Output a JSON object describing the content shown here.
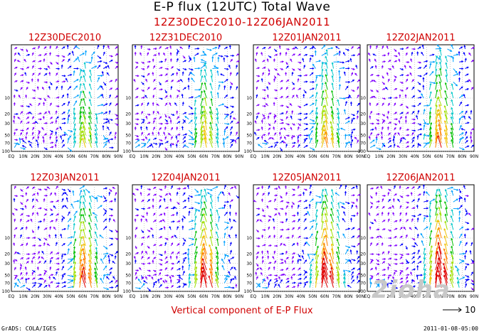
{
  "title": "E-P flux (12UTC) Total Wave",
  "subtitle": "12Z30DEC2010-12Z06JAN2011",
  "footer_label": "Vertical component of E-P Flux",
  "credit": "GrADS: COLA/IGES",
  "timestamp": "2011-01-08-05:00",
  "reference_vector_label": "10",
  "watermark": "2ioha",
  "chart_data": {
    "type": "quiver",
    "panels": [
      {
        "title": "12Z30DEC2010"
      },
      {
        "title": "12Z31DEC2010"
      },
      {
        "title": "12Z01JAN2011"
      },
      {
        "title": "12Z02JAN2011"
      },
      {
        "title": "12Z03JAN2011"
      },
      {
        "title": "12Z04JAN2011"
      },
      {
        "title": "12Z05JAN2011"
      },
      {
        "title": "12Z06JAN2011"
      }
    ],
    "x_ticks": [
      "EQ",
      "10N",
      "20N",
      "30N",
      "40N",
      "50N",
      "60N",
      "70N",
      "80N",
      "90N"
    ],
    "y_ticks": [
      "10",
      "20",
      "30",
      "50",
      "70",
      "100"
    ],
    "ylim": [
      1,
      100
    ],
    "y_scale": "log",
    "colors": [
      "#8000ff",
      "#0000ff",
      "#00a0ff",
      "#00c8c8",
      "#00c000",
      "#a0e000",
      "#f0c000",
      "#ff8000",
      "#e00000"
    ]
  }
}
